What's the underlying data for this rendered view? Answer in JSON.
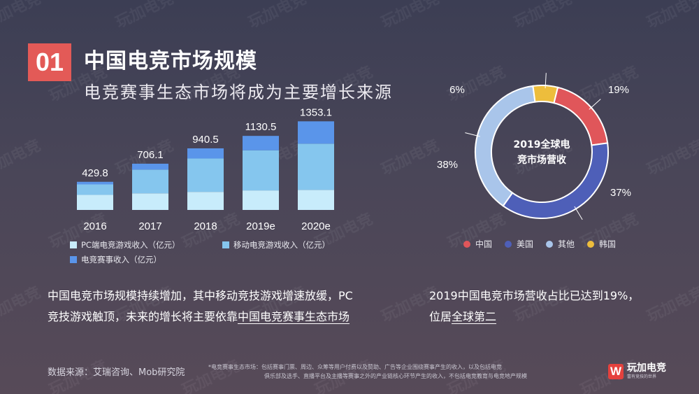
{
  "header": {
    "badge": "01",
    "title": "中国电竞市场规模",
    "subtitle": "电竞赛事生态市场将成为主要增长来源"
  },
  "chart_data": [
    {
      "type": "bar",
      "stacked": true,
      "categories": [
        "2016",
        "2017",
        "2018",
        "2019e",
        "2020e"
      ],
      "totals": [
        429.8,
        706.1,
        940.5,
        1130.5,
        1353.1
      ],
      "total_labels": [
        "429.8",
        "706.1",
        "940.5",
        "1130.5",
        "1353.1"
      ],
      "series": [
        {
          "name": "PC端电竞游戏收入（亿元）",
          "color": "#c8ecfb",
          "values": [
            230,
            254,
            276,
            298,
            306
          ]
        },
        {
          "name": "移动电竞游戏收入（亿元）",
          "color": "#85c6ee",
          "values": [
            160,
            362,
            509,
            613,
            706
          ]
        },
        {
          "name": "电竞赛事收入（亿元）",
          "color": "#5a95ea",
          "values": [
            39.8,
            90.1,
            155.5,
            219.5,
            341.1
          ]
        }
      ],
      "ylim": [
        0,
        1400
      ]
    },
    {
      "type": "pie",
      "donut": true,
      "center_label": [
        "2019全球电",
        "竞市场营收"
      ],
      "slices": [
        {
          "name": "中国",
          "value": 19,
          "label": "19%",
          "color": "#e0565a"
        },
        {
          "name": "美国",
          "value": 37,
          "label": "37%",
          "color": "#4e5fb8"
        },
        {
          "name": "其他",
          "value": 38,
          "label": "38%",
          "color": "#a9c5ea"
        },
        {
          "name": "韩国",
          "value": 6,
          "label": "6%",
          "color": "#edbd3c"
        }
      ]
    }
  ],
  "text": {
    "left_line1_a": "中国电竞市场规模持续增加，其中移动竞技游戏增速放缓，PC",
    "left_line2_a": "竞技游戏触顶，未来的增长将主要依靠",
    "left_line2_u": "中国电竞赛事生态市场",
    "right_line1": "2019中国电竞市场营收占比已达到19%，",
    "right_line2_a": "位居",
    "right_line2_u": "全球第二"
  },
  "footer": {
    "source": "数据来源：艾瑞咨询、Mob研究院",
    "footnote_line1": "*电竞赛事生态市场：包括赛事门票、周边、众筹等用户付费以及赞助、广告等企业围绕赛事产生的收入，以及包括电竞",
    "footnote_line2": "俱乐部及选手、直播平台及主播等赛事之外的产业链核心环节产生的收入，不包括电竞教育与电竞地产规模",
    "logo_name": "玩加电竞",
    "logo_tagline": "富有竞技的世界"
  },
  "watermark_text": "玩加电竞"
}
